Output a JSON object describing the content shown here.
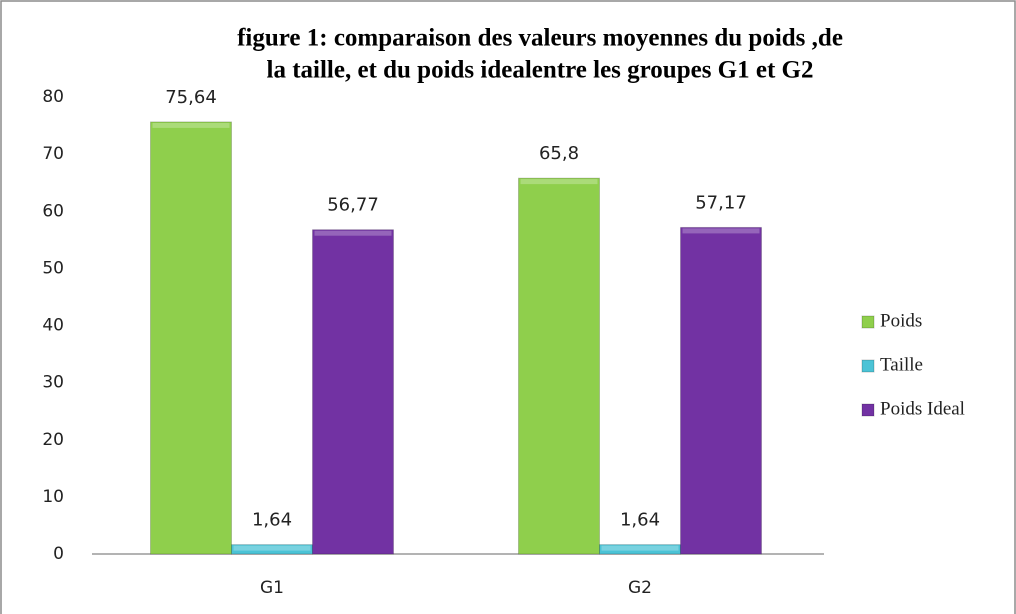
{
  "chart_data": {
    "type": "bar",
    "title": [
      "figure 1: comparaison des valeurs moyennes du poids ,de",
      "la taille, et du poids idealentre les groupes G1 et G2"
    ],
    "categories": [
      "G1",
      "G2"
    ],
    "series": [
      {
        "name": "Poids",
        "color": "#8fcf4c",
        "values": [
          75.64,
          65.8
        ],
        "value_labels": [
          "75,64",
          "65,8"
        ]
      },
      {
        "name": "Taille",
        "color": "#4bc3d6",
        "values": [
          1.64,
          1.64
        ],
        "value_labels": [
          "1,64",
          "1,64"
        ]
      },
      {
        "name": "Poids Ideal",
        "color": "#7232a3",
        "values": [
          56.77,
          57.17
        ],
        "value_labels": [
          "56,77",
          "57,17"
        ]
      }
    ],
    "ylim": [
      0,
      80
    ],
    "yticks": [
      0,
      10,
      20,
      30,
      40,
      50,
      60,
      70,
      80
    ],
    "grid": false,
    "legend": "right"
  }
}
